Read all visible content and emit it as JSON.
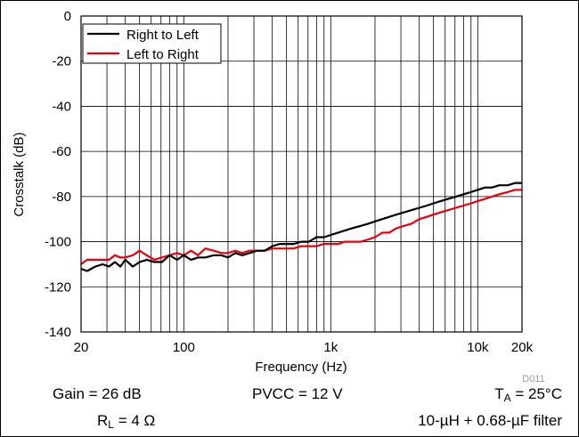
{
  "chart_data": {
    "type": "line",
    "title": "",
    "xlabel": "Frequency (Hz)",
    "ylabel": "Crosstalk (dB)",
    "x_scale": "log",
    "xlim": [
      20,
      20000
    ],
    "ylim": [
      -140,
      0
    ],
    "x_ticks": [
      {
        "value": 20,
        "label": "20"
      },
      {
        "value": 100,
        "label": "100"
      },
      {
        "value": 1000,
        "label": "1k"
      },
      {
        "value": 10000,
        "label": "10k"
      },
      {
        "value": 20000,
        "label": "20k"
      }
    ],
    "y_ticks": [
      0,
      -20,
      -40,
      -60,
      -80,
      -100,
      -120,
      -140
    ],
    "grid": true,
    "legend_position": "top-left",
    "series": [
      {
        "name": "Right to Left",
        "color": "#000000",
        "x": [
          20,
          22,
          25,
          28,
          31,
          34,
          37,
          40,
          45,
          50,
          56,
          63,
          71,
          80,
          90,
          100,
          112,
          125,
          140,
          160,
          180,
          200,
          224,
          250,
          280,
          315,
          355,
          400,
          450,
          500,
          560,
          630,
          710,
          800,
          900,
          1000,
          1120,
          1250,
          1400,
          1600,
          1800,
          2000,
          2240,
          2500,
          2800,
          3150,
          3550,
          4000,
          4500,
          5000,
          5600,
          6300,
          7100,
          8000,
          9000,
          10000,
          11200,
          12500,
          14000,
          16000,
          18000,
          20000
        ],
        "y": [
          -112,
          -113,
          -111,
          -110,
          -111,
          -109,
          -111,
          -108,
          -111,
          -109,
          -108,
          -109,
          -109,
          -106,
          -108,
          -106,
          -108,
          -107,
          -107,
          -106,
          -106,
          -107,
          -105,
          -106,
          -105,
          -104,
          -104,
          -102,
          -101,
          -101,
          -101,
          -100,
          -100,
          -98,
          -98,
          -97,
          -96,
          -95,
          -94,
          -93,
          -92,
          -91,
          -90,
          -89,
          -88,
          -87,
          -86,
          -85,
          -84,
          -83,
          -82,
          -81,
          -80,
          -79,
          -78,
          -77,
          -76,
          -76,
          -75,
          -75,
          -74,
          -74
        ]
      },
      {
        "name": "Left to Right",
        "color": "#e8000b",
        "x": [
          20,
          22,
          25,
          28,
          31,
          34,
          37,
          40,
          45,
          50,
          56,
          63,
          71,
          80,
          90,
          100,
          112,
          125,
          140,
          160,
          180,
          200,
          224,
          250,
          280,
          315,
          355,
          400,
          450,
          500,
          560,
          630,
          710,
          800,
          900,
          1000,
          1120,
          1250,
          1400,
          1600,
          1800,
          2000,
          2240,
          2500,
          2800,
          3150,
          3550,
          4000,
          4500,
          5000,
          5600,
          6300,
          7100,
          8000,
          9000,
          10000,
          11200,
          12500,
          14000,
          16000,
          18000,
          20000
        ],
        "y": [
          -110,
          -108,
          -108,
          -108,
          -108,
          -106,
          -107,
          -107,
          -106,
          -104,
          -106,
          -108,
          -107,
          -106,
          -105,
          -106,
          -104,
          -106,
          -103,
          -104,
          -105,
          -105,
          -104,
          -105,
          -104,
          -104,
          -104,
          -103,
          -103,
          -103,
          -103,
          -102,
          -102,
          -102,
          -101,
          -101,
          -101,
          -100,
          -100,
          -100,
          -99,
          -98,
          -96,
          -96,
          -94,
          -93,
          -92,
          -90,
          -89,
          -88,
          -87,
          -86,
          -85,
          -84,
          -83,
          -82,
          -81,
          -80,
          -79,
          -78,
          -77,
          -77
        ]
      }
    ],
    "code_label": "D011"
  },
  "conditions": {
    "gain": "Gain = 26 dB",
    "pvcc": "PVCC = 12 V",
    "ta_prefix": "T",
    "ta_sub": "A",
    "ta_rest": " = 25°C",
    "rl_prefix": "R",
    "rl_sub": "L",
    "rl_rest": " = 4 Ω",
    "filter": "10-µH + 0.68-µF filter"
  }
}
